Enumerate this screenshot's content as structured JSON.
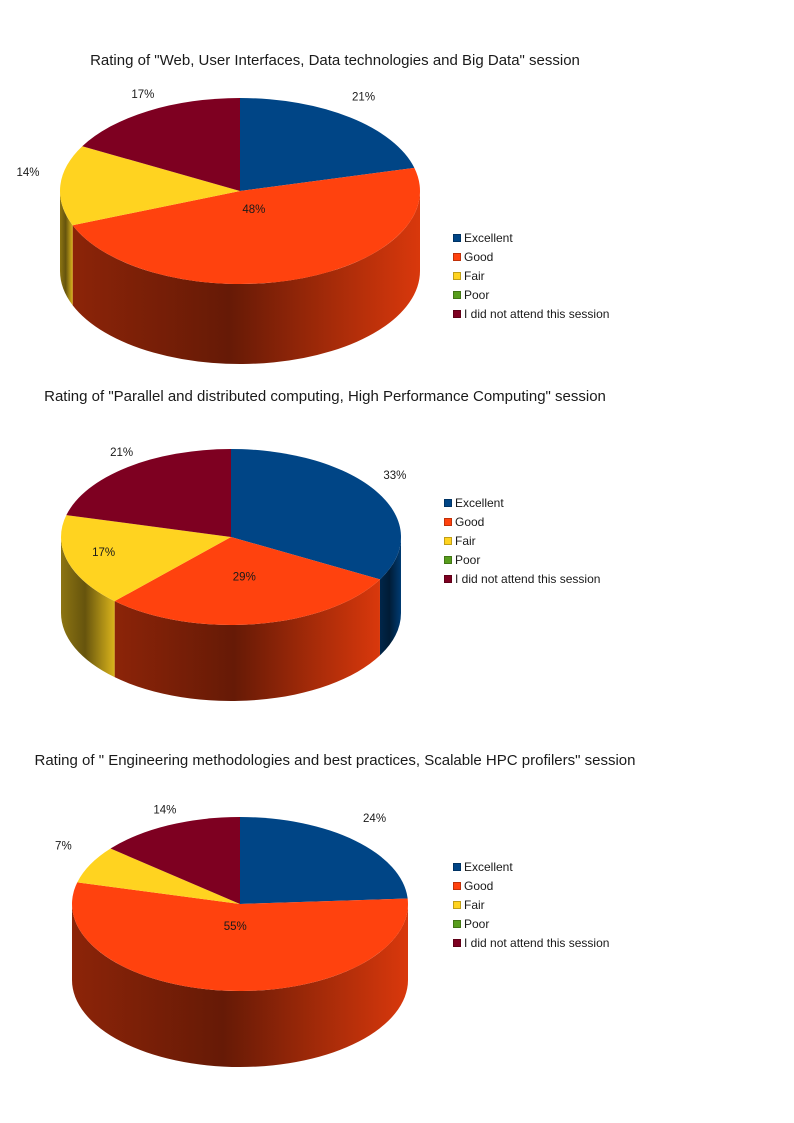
{
  "colors": {
    "Excellent": "#004586",
    "Good": "#ff420e",
    "Fair": "#ffd320",
    "Poor": "#579d1c",
    "I did not attend this session": "#7e0021"
  },
  "legend": [
    "Excellent",
    "Good",
    "Fair",
    "Poor",
    "I did not attend this session"
  ],
  "chart_data": [
    {
      "type": "pie",
      "title": "Rating of \"Web, User Interfaces, Data technologies and Big Data\" session",
      "categories": [
        "Excellent",
        "Good",
        "Fair",
        "Poor",
        "I did not attend this session"
      ],
      "values": [
        21,
        48,
        14,
        0,
        17
      ],
      "labels": [
        "21%",
        "48%",
        "14%",
        "",
        "17%"
      ],
      "legend_position": "right",
      "style": "3d"
    },
    {
      "type": "pie",
      "title": "Rating of \"Parallel and distributed computing, High Performance Computing\" session",
      "categories": [
        "Excellent",
        "Good",
        "Fair",
        "Poor",
        "I did not attend this session"
      ],
      "values": [
        33,
        29,
        17,
        0,
        21
      ],
      "labels": [
        "33%",
        "29%",
        "17%",
        "",
        "21%"
      ],
      "legend_position": "right",
      "style": "3d"
    },
    {
      "type": "pie",
      "title": "Rating of \" Engineering methodologies and best practices, Scalable HPC profilers\" session",
      "categories": [
        "Excellent",
        "Good",
        "Fair",
        "Poor",
        "I did not attend this session"
      ],
      "values": [
        24,
        55,
        7,
        0,
        14
      ],
      "labels": [
        "24%",
        "55%",
        "7%",
        "",
        "14%"
      ],
      "legend_position": "right",
      "style": "3d"
    }
  ]
}
